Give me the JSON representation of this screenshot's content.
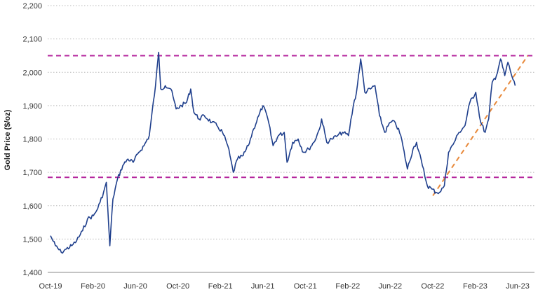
{
  "chart_data": {
    "type": "line",
    "ylabel": "Gold Price ($/oz)",
    "xlabel": "",
    "ylim": [
      1400,
      2200
    ],
    "y_ticks": [
      "1,400",
      "1,500",
      "1,600",
      "1,700",
      "1,800",
      "1,900",
      "2,000",
      "2,100",
      "2,200"
    ],
    "x_ticks": [
      "Oct-19",
      "Feb-20",
      "Jun-20",
      "Oct-20",
      "Feb-21",
      "Jun-21",
      "Oct-21",
      "Feb-22",
      "Jun-22",
      "Oct-22",
      "Feb-23",
      "Jun-23"
    ],
    "grid": "horizontal dotted",
    "colors": {
      "series": "#1f3f8c",
      "resistance_support": "#b5279e",
      "trendline": "#e88a3c"
    },
    "series": [
      {
        "x": [
          "2019-10-01",
          "2019-10-15",
          "2019-11-01",
          "2019-11-15",
          "2019-12-01",
          "2019-12-15",
          "2020-01-01",
          "2020-01-15",
          "2020-02-01",
          "2020-02-10",
          "2020-02-20",
          "2020-03-01",
          "2020-03-09",
          "2020-03-19",
          "2020-03-28",
          "2020-04-10",
          "2020-04-25",
          "2020-05-10",
          "2020-05-25",
          "2020-06-10",
          "2020-06-25",
          "2020-07-10",
          "2020-07-28",
          "2020-08-06",
          "2020-08-12",
          "2020-08-25",
          "2020-09-10",
          "2020-09-25",
          "2020-10-10",
          "2020-10-25",
          "2020-11-06",
          "2020-11-15",
          "2020-11-30",
          "2020-12-15",
          "2021-01-05",
          "2021-01-20",
          "2021-02-05",
          "2021-02-20",
          "2021-03-08",
          "2021-03-20",
          "2021-04-05",
          "2021-04-20",
          "2021-05-05",
          "2021-05-20",
          "2021-06-01",
          "2021-06-15",
          "2021-06-30",
          "2021-07-15",
          "2021-08-01",
          "2021-08-09",
          "2021-08-25",
          "2021-09-10",
          "2021-09-25",
          "2021-10-10",
          "2021-10-25",
          "2021-11-10",
          "2021-11-16",
          "2021-12-01",
          "2021-12-15",
          "2022-01-01",
          "2022-01-15",
          "2022-02-01",
          "2022-02-15",
          "2022-02-24",
          "2022-03-08",
          "2022-03-20",
          "2022-04-05",
          "2022-04-18",
          "2022-05-01",
          "2022-05-16",
          "2022-06-01",
          "2022-06-15",
          "2022-07-01",
          "2022-07-20",
          "2022-08-05",
          "2022-08-15",
          "2022-09-01",
          "2022-09-15",
          "2022-09-28",
          "2022-10-10",
          "2022-10-20",
          "2022-11-03",
          "2022-11-15",
          "2022-12-01",
          "2022-12-15",
          "2023-01-01",
          "2023-01-15",
          "2023-02-01",
          "2023-02-15",
          "2023-02-28",
          "2023-03-10",
          "2023-03-20",
          "2023-04-01",
          "2023-04-13",
          "2023-04-25",
          "2023-05-04",
          "2023-05-15",
          "2023-05-25"
        ],
        "values": [
          1510,
          1480,
          1460,
          1470,
          1480,
          1495,
          1525,
          1560,
          1570,
          1585,
          1610,
          1640,
          1670,
          1480,
          1620,
          1680,
          1720,
          1740,
          1730,
          1760,
          1780,
          1810,
          1960,
          2060,
          1950,
          1960,
          1950,
          1890,
          1900,
          1910,
          1950,
          1880,
          1860,
          1870,
          1850,
          1840,
          1820,
          1780,
          1700,
          1740,
          1750,
          1780,
          1830,
          1870,
          1900,
          1860,
          1780,
          1810,
          1820,
          1730,
          1790,
          1800,
          1760,
          1770,
          1790,
          1830,
          1860,
          1790,
          1800,
          1810,
          1820,
          1810,
          1900,
          1940,
          2040,
          1940,
          1950,
          1960,
          1870,
          1820,
          1850,
          1850,
          1810,
          1710,
          1770,
          1790,
          1720,
          1660,
          1650,
          1640,
          1640,
          1660,
          1760,
          1790,
          1820,
          1840,
          1910,
          1940,
          1850,
          1820,
          1860,
          1970,
          1990,
          2040,
          1990,
          2030,
          1990,
          1960
        ]
      }
    ],
    "reference_lines": [
      {
        "kind": "horizontal",
        "y": 2050,
        "style": "dashed"
      },
      {
        "kind": "horizontal",
        "y": 1685,
        "style": "dashed"
      },
      {
        "kind": "trendline",
        "x": [
          "2022-10-01",
          "2023-06-30"
        ],
        "y": [
          1630,
          2050
        ],
        "style": "dashed"
      }
    ]
  }
}
